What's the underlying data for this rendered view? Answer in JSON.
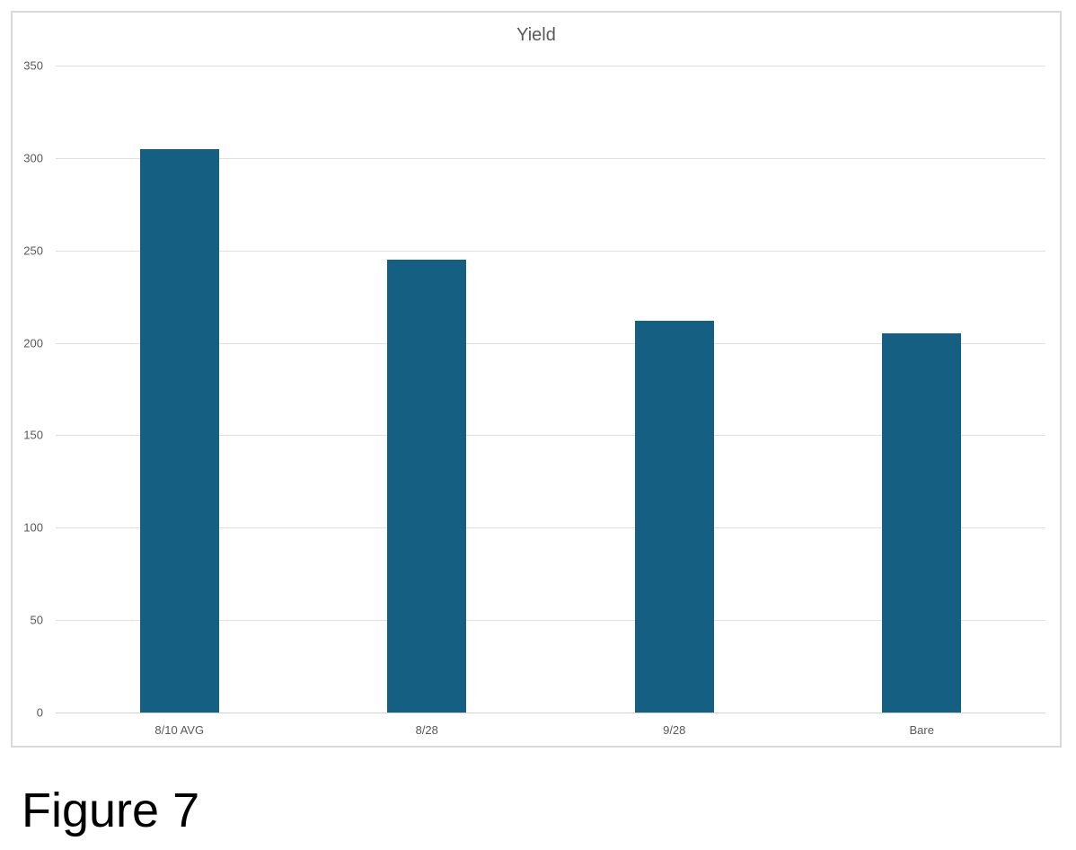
{
  "page": {
    "background": "#ffffff",
    "caption": "Figure 7"
  },
  "chart": {
    "frame_border_color": "#d9d9d9",
    "background": "#ffffff"
  },
  "chart_data": {
    "type": "bar",
    "title": "Yield",
    "categories": [
      "8/10 AVG",
      "8/28",
      "9/28",
      "Bare"
    ],
    "values": [
      305,
      245,
      212,
      205
    ],
    "xlabel": "",
    "ylabel": "",
    "ylim": [
      0,
      350
    ],
    "ytick_step": 50,
    "yticks": [
      0,
      50,
      100,
      150,
      200,
      250,
      300,
      350
    ],
    "grid": true,
    "legend": false,
    "bar_color": "#156082",
    "gridline_color": "#e0e0e0",
    "axis_line_color": "#d2d2d2",
    "axis_text_color": "#595959",
    "title_color": "#595959"
  }
}
